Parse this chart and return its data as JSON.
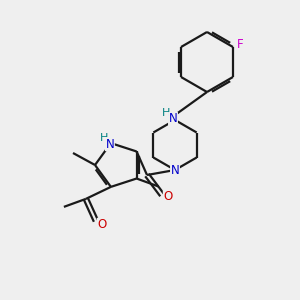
{
  "background_color": "#efefef",
  "bond_color": "#1a1a1a",
  "N_color": "#0000cc",
  "O_color": "#cc0000",
  "F_color": "#cc00cc",
  "H_color": "#008080",
  "figsize": [
    3.0,
    3.0
  ],
  "dpi": 100,
  "xlim": [
    0,
    300
  ],
  "ylim": [
    0,
    300
  ]
}
